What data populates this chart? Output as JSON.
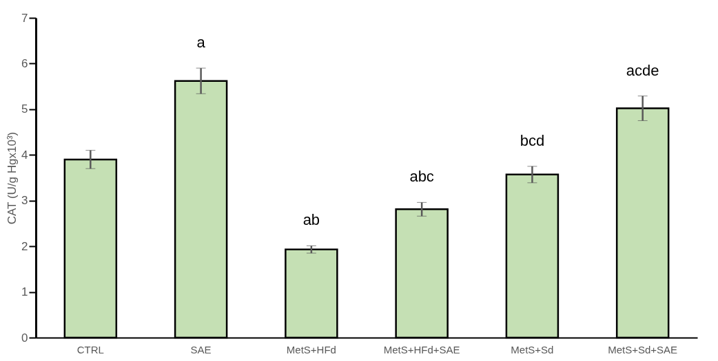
{
  "chart_data": {
    "type": "bar",
    "ylabel": "CAT (U/g Hgx10³)",
    "categories": [
      "CTRL",
      "SAE",
      "MetS+HFd",
      "MetS+HFd+SAE",
      "MetS+Sd",
      "MetS+Sd+SAE"
    ],
    "values": [
      3.9,
      5.62,
      1.93,
      2.81,
      3.57,
      5.02
    ],
    "errors": [
      0.2,
      0.28,
      0.08,
      0.15,
      0.18,
      0.27
    ],
    "color": "#c5e0b4",
    "ylim": [
      0,
      7
    ],
    "yticks": [
      0,
      1,
      2,
      3,
      4,
      5,
      6,
      7
    ],
    "grid": false,
    "annotations": [
      "a",
      "ab",
      "abc",
      "bcd",
      "acde"
    ]
  }
}
